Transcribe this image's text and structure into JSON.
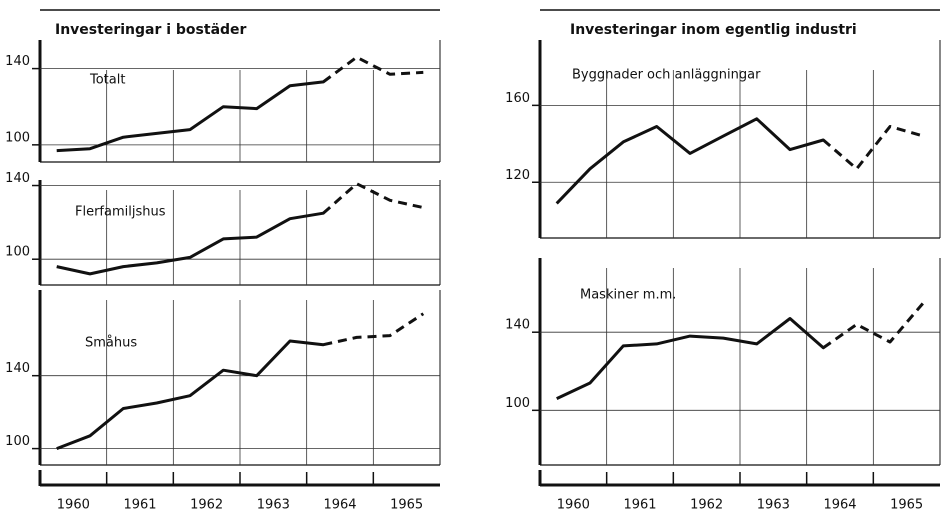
{
  "chart_data": [
    {
      "type": "line",
      "title": "Investeringar i bostäder",
      "x": [
        1960.25,
        1960.75,
        1961.25,
        1961.75,
        1962.25,
        1962.75,
        1963.25,
        1963.75,
        1964.25,
        1964.75,
        1965.25,
        1965.75
      ],
      "xlim": [
        1960,
        1966
      ],
      "xticks": [
        {
          "value": 1960.5,
          "label": "1960"
        },
        {
          "value": 1961.5,
          "label": "1961"
        },
        {
          "value": 1962.5,
          "label": "1962"
        },
        {
          "value": 1963.5,
          "label": "1963"
        },
        {
          "value": 1964.5,
          "label": "1964"
        },
        {
          "value": 1965.5,
          "label": "1965"
        }
      ],
      "xgrid": [
        1961,
        1962,
        1963,
        1964,
        1965
      ],
      "dashed_from": 8,
      "color": "#111111",
      "subplots": [
        {
          "label": "Totalt",
          "ylim": [
            91,
            155
          ],
          "yticks": [
            100,
            140
          ],
          "values": [
            97,
            98,
            104,
            106,
            108,
            120,
            119,
            131,
            133,
            146,
            137,
            138
          ]
        },
        {
          "label": "Flerfamiljshus",
          "ylim": [
            86,
            143
          ],
          "yticks": [
            100,
            140
          ],
          "values": [
            96,
            92,
            96,
            98,
            101,
            111,
            112,
            122,
            125,
            141,
            132,
            128
          ]
        },
        {
          "label": "Småhus",
          "ylim": [
            91,
            187
          ],
          "yticks": [
            100,
            140
          ],
          "values": [
            100,
            107,
            122,
            125,
            129,
            143,
            140,
            159,
            157,
            161,
            162,
            174
          ]
        }
      ]
    },
    {
      "type": "line",
      "title": "Investeringar inom egentlig industri",
      "x": [
        1960.25,
        1960.75,
        1961.25,
        1961.75,
        1962.25,
        1962.75,
        1963.25,
        1963.75,
        1964.25,
        1964.75,
        1965.25,
        1965.75
      ],
      "xlim": [
        1960,
        1966
      ],
      "xticks": [
        {
          "value": 1960.5,
          "label": "1960"
        },
        {
          "value": 1961.5,
          "label": "1961"
        },
        {
          "value": 1962.5,
          "label": "1962"
        },
        {
          "value": 1963.5,
          "label": "1963"
        },
        {
          "value": 1964.5,
          "label": "1964"
        },
        {
          "value": 1965.5,
          "label": "1965"
        }
      ],
      "xgrid": [
        1961,
        1962,
        1963,
        1964,
        1965
      ],
      "dashed_from": 8,
      "color": "#111111",
      "subplots": [
        {
          "label": "Byggnader och anläggningar",
          "ylim": [
            91,
            194
          ],
          "yticks": [
            120,
            160
          ],
          "values": [
            109,
            127,
            141,
            149,
            135,
            144,
            153,
            137,
            142,
            127,
            149,
            144
          ]
        },
        {
          "label": "Maskiner m.m.",
          "ylim": [
            72,
            178
          ],
          "yticks": [
            100,
            140
          ],
          "values": [
            106,
            114,
            133,
            134,
            138,
            137,
            134,
            147,
            132,
            144,
            135,
            155
          ]
        }
      ]
    }
  ]
}
